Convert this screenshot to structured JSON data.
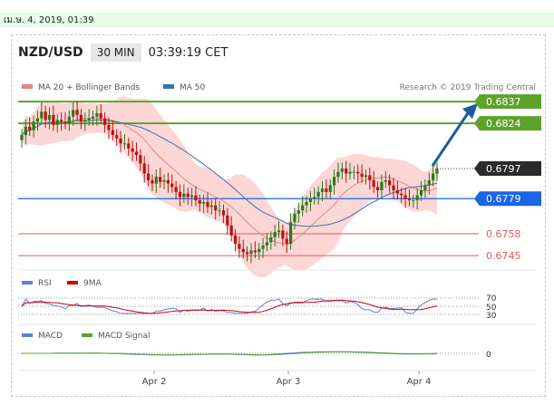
{
  "date_bar": "เม.ษ. 4, 2019, 01:39",
  "header": {
    "pair": "NZD/USD",
    "timeframe": "30 MIN",
    "time": "03:39:19 CET"
  },
  "legend": {
    "ma20": "MA 20 + Bollinger Bands",
    "ma50": "MA 50",
    "research": "Research © 2019 Trading Central"
  },
  "colors": {
    "ma20": "#e58585",
    "bands": "#fbd0cf",
    "ma50": "#3a6fb0",
    "green_level": "#5da32a",
    "blue_level": "#1d64e6",
    "red_level": "#e05a5a",
    "current_price": "#2b2b2b",
    "arrow": "#1e5a9e",
    "candle_up": "#2a7a1a",
    "candle_down": "#c01010",
    "rsi": "#5b7fe0",
    "rsi_9ma": "#d40000",
    "macd": "#5b7fe0",
    "macd_signal": "#5da32a"
  },
  "chart_data": [
    {
      "type": "candlestick",
      "name": "price",
      "ylim": [
        0.6738,
        0.6843
      ],
      "x_labels": [
        "Apr 2",
        "Apr 3",
        "Apr 4"
      ],
      "close": [
        0.6817,
        0.6822,
        0.682,
        0.6825,
        0.6827,
        0.6831,
        0.6826,
        0.6829,
        0.6823,
        0.6826,
        0.6825,
        0.6824,
        0.6828,
        0.6832,
        0.6829,
        0.6825,
        0.6826,
        0.6827,
        0.6828,
        0.683,
        0.6827,
        0.6823,
        0.682,
        0.6817,
        0.6815,
        0.6812,
        0.6812,
        0.6809,
        0.6807,
        0.6805,
        0.68,
        0.6794,
        0.679,
        0.6788,
        0.6792,
        0.6789,
        0.679,
        0.6788,
        0.6786,
        0.6783,
        0.678,
        0.6782,
        0.678,
        0.6781,
        0.6778,
        0.6776,
        0.6777,
        0.6774,
        0.6775,
        0.6772,
        0.6772,
        0.6769,
        0.6763,
        0.6757,
        0.6752,
        0.6749,
        0.6747,
        0.6746,
        0.6748,
        0.6747,
        0.6749,
        0.6751,
        0.6753,
        0.6756,
        0.6759,
        0.676,
        0.6755,
        0.6752,
        0.6765,
        0.677,
        0.6772,
        0.6775,
        0.6777,
        0.6779,
        0.678,
        0.6783,
        0.6785,
        0.6783,
        0.6787,
        0.6792,
        0.6795,
        0.6797,
        0.6794,
        0.6795,
        0.6795,
        0.6794,
        0.6792,
        0.6793,
        0.679,
        0.6786,
        0.6784,
        0.6789,
        0.679,
        0.6787,
        0.6784,
        0.6782,
        0.6781,
        0.6779,
        0.6778,
        0.6778,
        0.6781,
        0.6784,
        0.6787,
        0.679,
        0.6794,
        0.6797
      ],
      "levels": [
        {
          "value": 0.6837,
          "label": "0.6837",
          "kind": "resistance"
        },
        {
          "value": 0.6824,
          "label": "0.6824",
          "kind": "resistance"
        },
        {
          "value": 0.6797,
          "label": "0.6797",
          "kind": "current"
        },
        {
          "value": 0.6779,
          "label": "0.6779",
          "kind": "pivot"
        },
        {
          "value": 0.6758,
          "label": "0.6758",
          "kind": "support"
        },
        {
          "value": 0.6745,
          "label": "0.6745",
          "kind": "support"
        }
      ]
    },
    {
      "type": "line",
      "name": "RSI",
      "series_names": [
        "RSI",
        "9MA"
      ],
      "ticks": [
        "70",
        "50",
        "30"
      ]
    },
    {
      "type": "line",
      "name": "MACD",
      "series_names": [
        "MACD",
        "MACD Signal"
      ],
      "ticks": [
        "0"
      ]
    }
  ]
}
